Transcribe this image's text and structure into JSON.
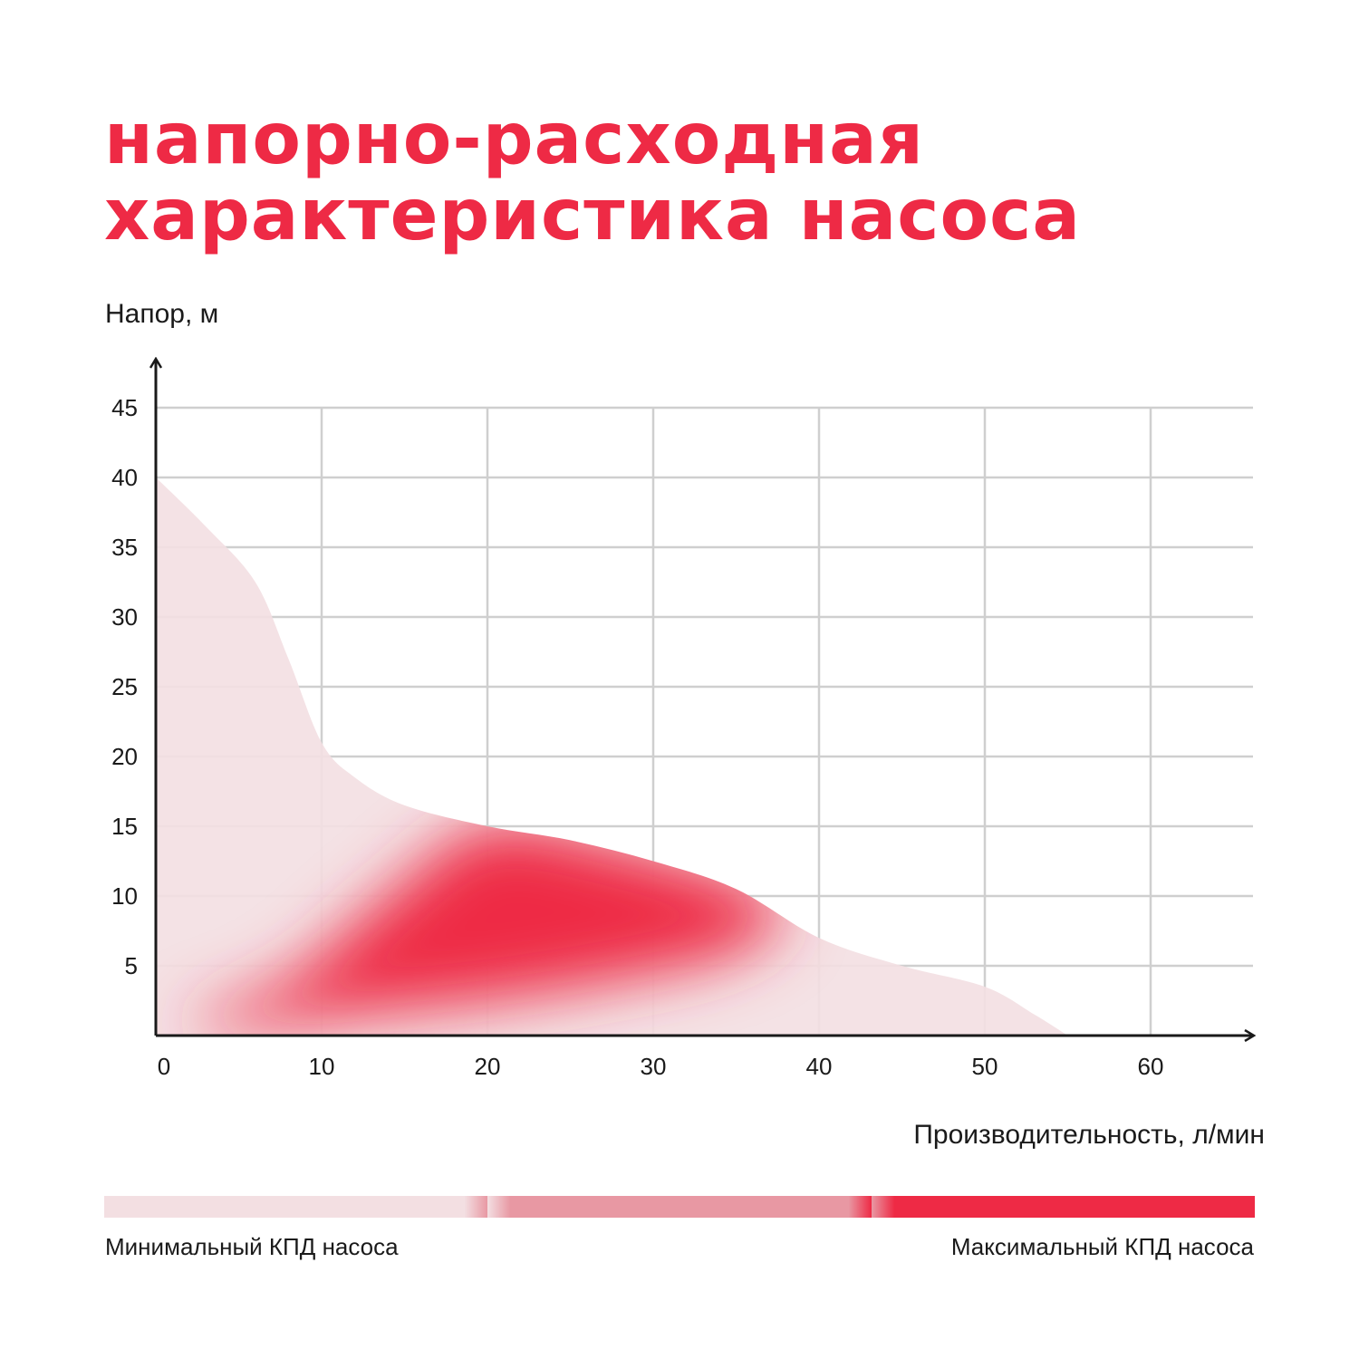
{
  "title": {
    "line1": "напорно-расходная",
    "line2": "характеристика насоса"
  },
  "chart_data": {
    "type": "area",
    "xlabel": "Производительность, л/мин",
    "ylabel": "Напор, м",
    "xlim": [
      0,
      66
    ],
    "ylim": [
      0,
      47
    ],
    "x_ticks": [
      0,
      10,
      20,
      30,
      40,
      50,
      60
    ],
    "y_ticks": [
      5,
      10,
      15,
      20,
      25,
      30,
      35,
      40,
      45
    ],
    "grid": true,
    "curve": {
      "x": [
        0,
        3,
        6,
        8,
        10,
        12,
        15,
        20,
        25,
        30,
        35,
        40,
        45,
        50,
        53,
        55
      ],
      "y": [
        40,
        36.5,
        32.5,
        27,
        21,
        18.5,
        16.5,
        15,
        14,
        12.5,
        10.5,
        7,
        5,
        3.5,
        1.5,
        0
      ]
    },
    "efficiency_zone": {
      "x": [
        2,
        8,
        14,
        20,
        28,
        35,
        38,
        35,
        28,
        20,
        12,
        5
      ],
      "y": [
        1,
        4,
        10,
        15,
        13.5,
        11,
        9,
        6,
        4,
        2.5,
        1.5,
        0.5
      ]
    },
    "colors": {
      "low_efficiency": "#f3dfe2",
      "mid_efficiency": "#e898a3",
      "high_efficiency": "#ee2a45",
      "grid": "#cfcfcf",
      "axis": "#1a1a1a"
    }
  },
  "legend": {
    "min_label": "Минимальный КПД насоса",
    "max_label": "Максимальный КПД насоса",
    "colors": [
      "#f3dfe2",
      "#e898a3",
      "#ee2a45"
    ]
  }
}
